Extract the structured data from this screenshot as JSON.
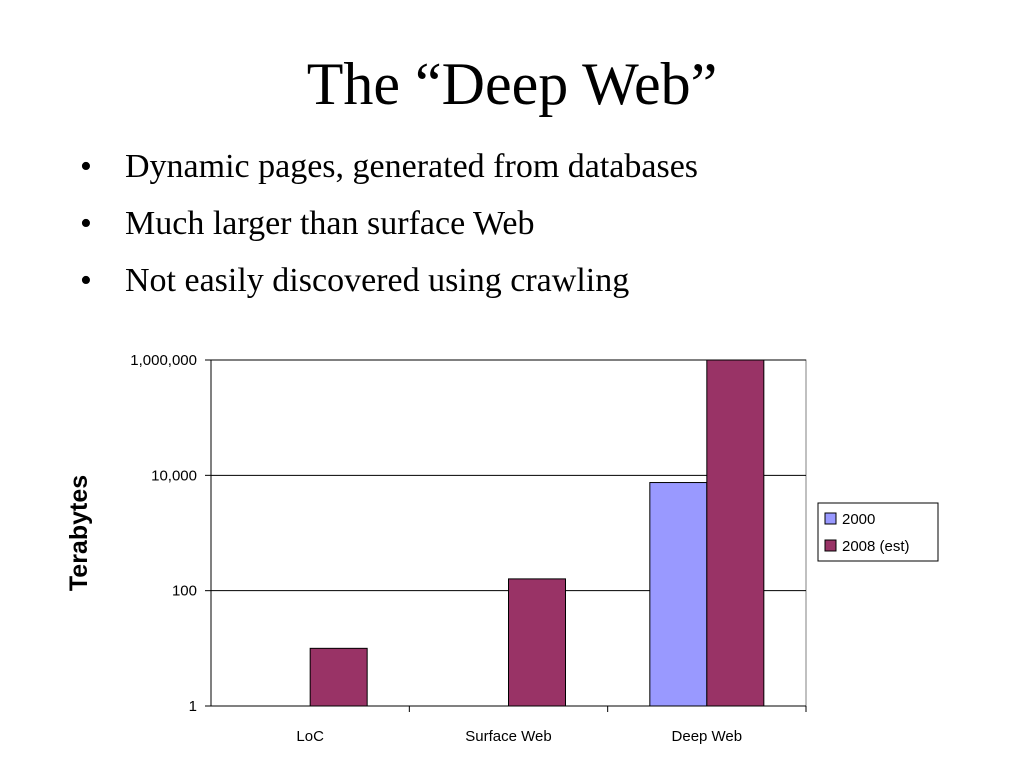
{
  "slide": {
    "title": "The “Deep Web”",
    "bullets": [
      "Dynamic pages, generated from databases",
      "Much larger than surface Web",
      "Not easily discovered using crawling"
    ]
  },
  "chart_data": {
    "type": "bar",
    "title": "",
    "xlabel": "",
    "ylabel": "Terabytes",
    "y_scale": "log",
    "ylim": [
      1,
      1000000
    ],
    "y_ticks": [
      {
        "value": 1,
        "label": "1"
      },
      {
        "value": 100,
        "label": "100"
      },
      {
        "value": 10000,
        "label": "10,000"
      },
      {
        "value": 1000000,
        "label": "1,000,000"
      }
    ],
    "categories": [
      "LoC",
      "Surface Web",
      "Deep Web"
    ],
    "series": [
      {
        "name": "2000",
        "color": "#9999FF",
        "values": [
          null,
          null,
          7500
        ]
      },
      {
        "name": "2008 (est)",
        "color": "#993366",
        "values": [
          10,
          160,
          1000000
        ]
      }
    ],
    "grid": true,
    "legend_position": "right"
  }
}
